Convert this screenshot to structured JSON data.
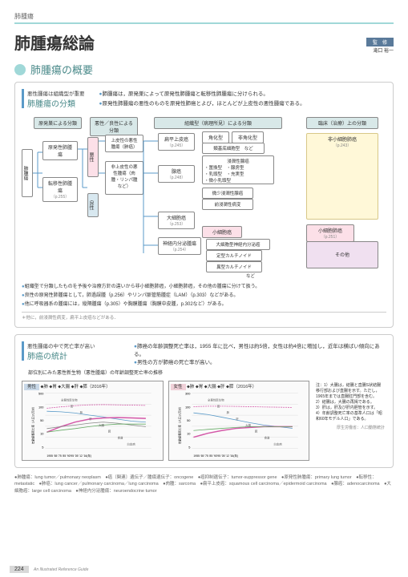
{
  "breadcrumb": "肺腫瘍",
  "title": "肺腫瘍総論",
  "author_badge": "監　修",
  "author": "滝口 裕一",
  "section1_title": "肺腫瘍の概要",
  "sub1_tag": "悪性腫瘍は組織型が重要",
  "sub1_title": "肺腫瘍の分類",
  "intro1": "肺腫瘍は，原発巣によって原発性肺腫瘍と転移性肺腫瘍に分けられる。",
  "intro2": "原発性肺腫瘍の悪性のものを原発性肺癌とよび，ほとんどが上皮性の悪性腫瘍である。",
  "diagram": {
    "col1_head": "原発巣による分類",
    "col2_head": "悪性／良性による分類",
    "col3_head": "組織型（病理所見）による分類",
    "col4_head": "臨床（治療）上の分類",
    "root": "肺腫瘍",
    "primary": "原発性肺腫瘍",
    "metastatic": "転移性肺腫瘍",
    "meta_ref": "（p.255）",
    "malignant": "悪性",
    "benign": "良性",
    "epithelial": "上皮性の悪性腫瘍（肺癌）",
    "nonepithelial": "非上皮性の悪性腫瘍（肉腫・リンパ腫など）",
    "squamous": "扁平上皮癌",
    "squamous_ref": "（p.245）",
    "sq_sub1": "角化型",
    "sq_sub2": "非角化型",
    "sq_sub3": "類基底細胞型　など",
    "adeno": "腺癌",
    "adeno_ref": "（p.248）",
    "ad_head": "浸潤性腺癌",
    "ad_sub1": "・置換型　・腺房型",
    "ad_sub2": "・乳頭型　・充実型",
    "ad_sub3": "・微小乳頭型",
    "ad_sub4": "微少浸潤性腺癌",
    "ad_sub5": "前浸潤性病変",
    "large": "大細胞癌",
    "large_ref": "（p.253）",
    "small": "小細胞癌",
    "neuro": "神経内分泌腫瘍",
    "neuro_ref": "（p.254）",
    "neuro1": "大細胞型神経内分泌癌",
    "neuro2": "定型カルチノイド",
    "neuro3": "異型カルチノイド",
    "neuro4": "など",
    "nsclc": "非小細胞肺癌",
    "nsclc_ref": "（p.243）",
    "sclc": "小細胞肺癌",
    "sclc_ref": "（p.251）",
    "other": "その他",
    "asterisk": "＊他に，前浸潤性病変，扁平上皮癌などがある．"
  },
  "notes": [
    "組織型で分類したものを予後や治療方針の違いから非小細胞肺癌，小細胞肺癌，その他の腫瘍に分けて扱う。",
    "良性の原発性肺腫瘍として，肺過誤腫（p.256）やリンパ脈管筋腫症（LAM）（p.303）などがある。",
    "他に呼吸器系の腫瘍には，縦隔腫瘍（p.305）や胸膜腫瘍（胸膜中皮腫，p.302など）がある。"
  ],
  "sub2_tag": "悪性腫瘍の中で死亡率が高い",
  "sub2_title": "肺癌の統計",
  "sub2_caption": "部位別にみた悪性新生物（悪性腫瘍）の年齢調整死亡率の推移",
  "stat1": "肺癌の年齢調整死亡率は，1955 年に比べ，男性は約5倍，女性は約4倍に増加し，近年は横ばい傾向にある。",
  "stat2": "男性の方が肺癌の死亡率が高い。",
  "chart_m_label": "男性",
  "chart_f_label": "女性",
  "chart_legend": "⬥肺 ⬥胃 ⬥大腸 ⬥肝 ⬥膵（2016年）",
  "chart_items": [
    "全悪性新生物",
    "胃",
    "肺",
    "肝",
    "大腸",
    "膵",
    "食道",
    "白血病"
  ],
  "chart_years": "1955 '65 '75 '85 '90'95 '05 '12 '16(年)",
  "chart_ylabel": "年齢調整死亡率（人口10万対）",
  "chart_ymax_m": "500",
  "chart_ymax_f": "300",
  "chart_notes": [
    "注：1）大腸は，結腸と直腸S状結腸移行部および直腸を示す。ただし，1965年までは直腸肛門部を含む。",
    "2）結腸は，大腸の再掲である。",
    "3）肝は，肝及び肝内胆管を示す。",
    "4）年齢調整死亡率の基準人口は「昭和60年モデル人口」である。"
  ],
  "chart_source": "厚生労働省：人口動態統計",
  "male_lines": {
    "all": [
      [
        0,
        120
      ],
      [
        20,
        140
      ],
      [
        40,
        160
      ],
      [
        60,
        175
      ],
      [
        80,
        180
      ],
      [
        100,
        175
      ],
      [
        120,
        170
      ],
      [
        140,
        165
      ]
    ],
    "stomach": [
      [
        0,
        85
      ],
      [
        20,
        80
      ],
      [
        40,
        70
      ],
      [
        60,
        55
      ],
      [
        80,
        45
      ],
      [
        100,
        35
      ],
      [
        120,
        28
      ],
      [
        140,
        25
      ]
    ],
    "lung": [
      [
        0,
        8
      ],
      [
        20,
        15
      ],
      [
        40,
        25
      ],
      [
        60,
        35
      ],
      [
        80,
        40
      ],
      [
        100,
        42
      ],
      [
        120,
        40
      ],
      [
        140,
        38
      ]
    ],
    "liver": [
      [
        0,
        12
      ],
      [
        20,
        15
      ],
      [
        40,
        18
      ],
      [
        60,
        22
      ],
      [
        80,
        25
      ],
      [
        100,
        22
      ],
      [
        120,
        18
      ],
      [
        140,
        15
      ]
    ],
    "colon": [
      [
        0,
        8
      ],
      [
        20,
        10
      ],
      [
        40,
        12
      ],
      [
        60,
        15
      ],
      [
        80,
        18
      ],
      [
        100,
        20
      ],
      [
        120,
        20
      ],
      [
        140,
        20
      ]
    ]
  },
  "female_lines": {
    "all": [
      [
        0,
        95
      ],
      [
        20,
        100
      ],
      [
        40,
        100
      ],
      [
        60,
        98
      ],
      [
        80,
        95
      ],
      [
        100,
        92
      ],
      [
        120,
        90
      ],
      [
        140,
        88
      ]
    ],
    "stomach": [
      [
        0,
        50
      ],
      [
        20,
        42
      ],
      [
        40,
        32
      ],
      [
        60,
        24
      ],
      [
        80,
        18
      ],
      [
        100,
        14
      ],
      [
        120,
        12
      ],
      [
        140,
        10
      ]
    ],
    "lung": [
      [
        0,
        4
      ],
      [
        20,
        6
      ],
      [
        40,
        8
      ],
      [
        60,
        10
      ],
      [
        80,
        11
      ],
      [
        100,
        12
      ],
      [
        120,
        12
      ],
      [
        140,
        12
      ]
    ],
    "colon": [
      [
        0,
        8
      ],
      [
        20,
        9
      ],
      [
        40,
        10
      ],
      [
        60,
        11
      ],
      [
        80,
        12
      ],
      [
        100,
        12
      ],
      [
        120,
        12
      ],
      [
        140,
        12
      ]
    ]
  },
  "colors": {
    "all": "#d458a8",
    "stomach": "#5a9ac8",
    "lung": "#d458a8",
    "liver": "#888",
    "colon": "#6a6",
    "pancreas": "#c88"
  },
  "glossary": "●肺腫瘍：lung tumor／pulmonary neoplasm　●癌〔関連〕遺伝子／腫瘍遺伝子：oncogene　●癌抑制遺伝子：tumor-suppressor gene　●原発性肺腫瘍：primary lung tumor　●転移性：metastatic　●肺癌：lung cancer／pulmonary carcinoma／lung carcinoma　●肉腫：sarcoma　●扁平上皮癌：squamous cell carcinoma／epidermoid carcinoma　●腺癌：adenocarcinoma　●大細胞癌：large cell carcinoma　●神経内分泌腫瘍：neuroendocrine tumor",
  "page_num": "224",
  "book": "An Illustrated Reference Guide"
}
